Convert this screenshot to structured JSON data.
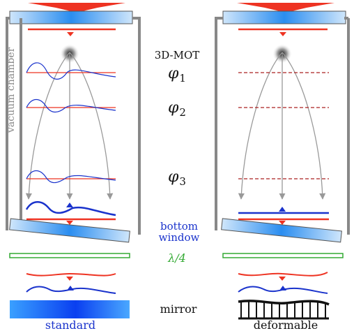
{
  "labels": {
    "chamber": "vacuum chamber",
    "mot": "3D-MOT",
    "phi1": {
      "base": "φ",
      "sub": "1"
    },
    "phi2": {
      "base": "φ",
      "sub": "2"
    },
    "phi3": {
      "base": "φ",
      "sub": "3"
    },
    "bottom_window_1": "bottom",
    "bottom_window_2": "window",
    "quarter_wave": "λ/4",
    "mirror": "mirror",
    "standard": "standard",
    "deformable": "deformable"
  },
  "colors": {
    "laser_red": "#ee3322",
    "wavefront_blue": "#1a33cc",
    "chamber_gray": "#888888",
    "trajectory_gray": "#999999",
    "waveplate_green": "#33aa33",
    "window_blue": "#2a8df0",
    "dark_red_dashed": "#aa2222"
  }
}
